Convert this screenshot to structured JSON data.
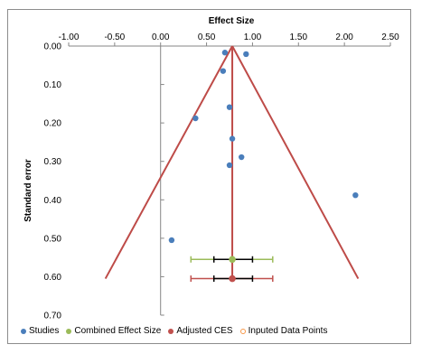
{
  "chart_data": {
    "type": "scatter",
    "title": "Effect Size",
    "xlabel": "Effect Size",
    "ylabel": "Standard error",
    "xlim": [
      -1.0,
      2.5
    ],
    "ylim": [
      0.0,
      0.7
    ],
    "y_inverted": true,
    "x_axis_position": "top",
    "x_ticks": [
      "-1.00",
      "-0.50",
      "0.00",
      "0.50",
      "1.00",
      "1.50",
      "2.00",
      "2.50"
    ],
    "y_ticks": [
      "0.00",
      "0.10",
      "0.20",
      "0.30",
      "0.40",
      "0.50",
      "0.60",
      "0.70"
    ],
    "grid": false,
    "legend_position": "bottom",
    "series": [
      {
        "name": "Studies",
        "color": "#4a7ebb",
        "points": [
          {
            "x": 0.7,
            "y": 0.017
          },
          {
            "x": 0.93,
            "y": 0.021
          },
          {
            "x": 0.68,
            "y": 0.065
          },
          {
            "x": 0.75,
            "y": 0.159
          },
          {
            "x": 0.38,
            "y": 0.188
          },
          {
            "x": 0.78,
            "y": 0.241
          },
          {
            "x": 0.88,
            "y": 0.289
          },
          {
            "x": 0.75,
            "y": 0.31
          },
          {
            "x": 2.12,
            "y": 0.388
          },
          {
            "x": 0.12,
            "y": 0.505
          }
        ]
      },
      {
        "name": "Combined Effect Size",
        "color": "#9bbb59",
        "point": {
          "x": 0.78,
          "y": 0.555
        },
        "ci95": [
          0.58,
          1.0
        ],
        "range": [
          0.33,
          1.22
        ]
      },
      {
        "name": "Adjusted CES",
        "color": "#c0504d",
        "point": {
          "x": 0.78,
          "y": 0.605
        },
        "ci95": [
          0.58,
          1.0
        ],
        "range": [
          0.33,
          1.22
        ]
      },
      {
        "name": "Inputed Data Points",
        "color": "#f79646",
        "points": []
      }
    ],
    "funnel": {
      "color": "#be4b48",
      "apex": {
        "x": 0.78,
        "y": 0.0
      },
      "base_left": {
        "x": -0.6,
        "y": 0.605
      },
      "base_right": {
        "x": 2.15,
        "y": 0.605
      }
    },
    "vertical_line": {
      "x": 0.78,
      "y_from": 0.0,
      "y_to": 0.605,
      "color": "#be4b48"
    },
    "legend": [
      {
        "label": "Studies",
        "color": "#4a7ebb",
        "style": "filled"
      },
      {
        "label": "Combined Effect Size",
        "color": "#9bbb59",
        "style": "filled"
      },
      {
        "label": "Adjusted CES",
        "color": "#c0504d",
        "style": "filled"
      },
      {
        "label": "Inputed Data Points",
        "color": "#f79646",
        "style": "ring"
      }
    ]
  }
}
